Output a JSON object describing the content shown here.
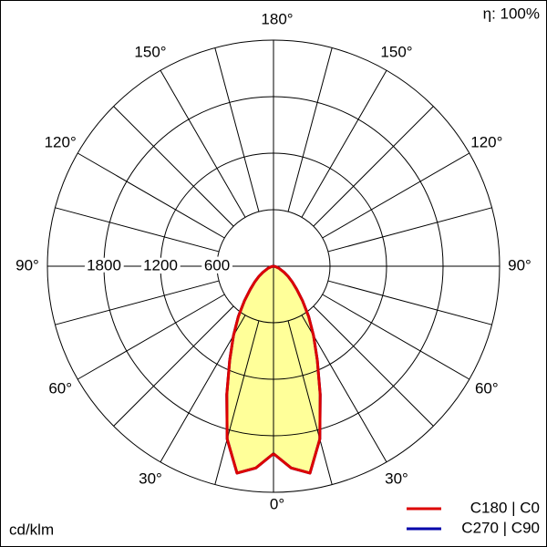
{
  "chart_data": {
    "type": "polar-intensity",
    "efficiency_label": "η: 100%",
    "unit_label": "cd/klm",
    "rlim": [
      0,
      2400
    ],
    "rticks": [
      600,
      1200,
      1800,
      2400
    ],
    "angle_ticks": [
      {
        "value": 0,
        "label": "0°"
      },
      {
        "value": 30,
        "label": "30°"
      },
      {
        "value": 60,
        "label": "60°"
      },
      {
        "value": 90,
        "label": "90°"
      },
      {
        "value": 120,
        "label": "120°"
      },
      {
        "value": 150,
        "label": "150°"
      },
      {
        "value": 180,
        "label": "180°"
      }
    ],
    "gamma": [
      0,
      5,
      10,
      15,
      20,
      25,
      30,
      35,
      40,
      45,
      50,
      55,
      60,
      70,
      80,
      90
    ],
    "fill": "#ffff99",
    "series": [
      {
        "name": "C270 | C90",
        "color": "#0000aa",
        "values": [
          1990,
          2150,
          2230,
          1900,
          1450,
          1100,
          850,
          650,
          480,
          350,
          260,
          190,
          130,
          60,
          20,
          0
        ]
      },
      {
        "name": "C180 | C0",
        "color": "#dd0000",
        "values": [
          1990,
          2150,
          2230,
          1900,
          1450,
          1100,
          850,
          650,
          480,
          350,
          260,
          190,
          130,
          60,
          20,
          0
        ]
      }
    ]
  }
}
